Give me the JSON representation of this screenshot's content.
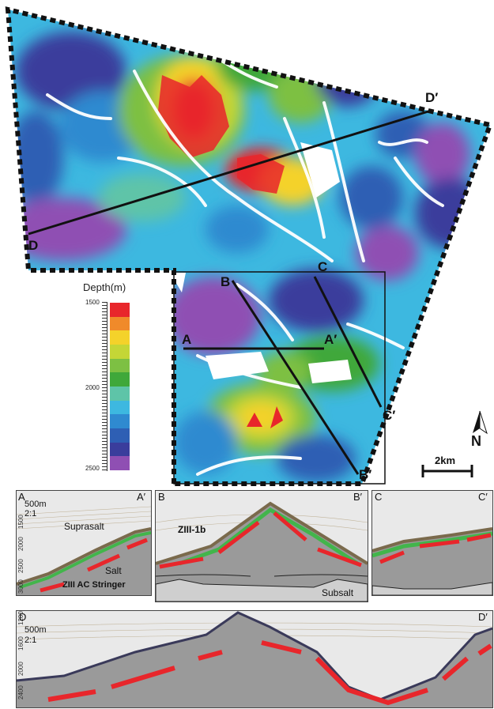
{
  "map": {
    "labels": {
      "d": "D",
      "d_prime": "D′",
      "a": "A",
      "a_prime": "A′",
      "b": "B",
      "b_prime": "B′",
      "c": "C",
      "c_prime": "C′"
    },
    "north": "N",
    "scale": "2km"
  },
  "legend": {
    "title": "Depth(m)",
    "ticks": [
      "1500",
      "2000",
      "2500"
    ],
    "colors": [
      "#e8262b",
      "#f08a2a",
      "#f4d22a",
      "#c4d636",
      "#7dc043",
      "#3fa83a",
      "#5ec4a8",
      "#3db8e0",
      "#2f8ad0",
      "#2e5fb4",
      "#3a3d9c",
      "#8f4fb3"
    ]
  },
  "sections": {
    "a": {
      "left": "A",
      "right": "A′",
      "scale": "500m",
      "ratio": "2:1",
      "depths": [
        "1500",
        "2000",
        "2500",
        "3000"
      ],
      "suprasalt": "Suprasalt",
      "salt": "Salt",
      "stringer": "ZIII AC Stringer"
    },
    "b": {
      "left": "B",
      "right": "B′",
      "stringer": "ZIII-1b",
      "subsalt": "Subsalt"
    },
    "c": {
      "left": "C",
      "right": "C′"
    },
    "d": {
      "left": "D",
      "right": "D′",
      "scale": "500m",
      "ratio": "2:1",
      "depths": [
        "1200",
        "1600",
        "2000",
        "2400"
      ]
    }
  }
}
